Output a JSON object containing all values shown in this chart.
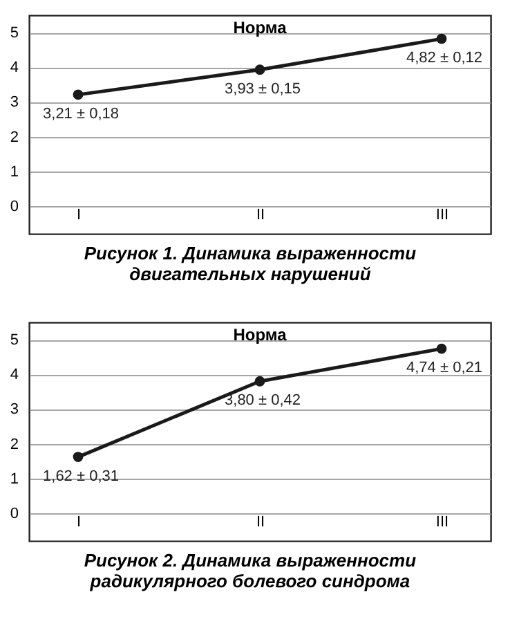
{
  "chart_data": [
    {
      "type": "line",
      "title": "Норма",
      "categories": [
        "I",
        "II",
        "III"
      ],
      "series": [
        {
          "color": "#1a1a1a",
          "values": [
            3.21,
            3.93,
            4.82
          ],
          "value_labels": [
            "3,21 ± 0,18",
            "3,93 ± 0,15",
            "4,82 ± 0,12"
          ]
        }
      ],
      "ylim": [
        -0.8,
        5.5
      ],
      "yticks": [
        0,
        1,
        2,
        3,
        4,
        5
      ],
      "grid": "y",
      "marker": "circle",
      "line_style": "solid",
      "annotations": [
        "Рисунок 1. Динамика выраженности\nдвигательных нарушений"
      ]
    },
    {
      "type": "line",
      "title": "Норма",
      "categories": [
        "I",
        "II",
        "III"
      ],
      "series": [
        {
          "color": "#1a1a1a",
          "values": [
            1.62,
            3.8,
            4.74
          ],
          "value_labels": [
            "1,62 ± 0,31",
            "3,80 ± 0,42",
            "4,74 ± 0,21"
          ]
        }
      ],
      "ylim": [
        -0.8,
        5.5
      ],
      "yticks": [
        0,
        1,
        2,
        3,
        4,
        5
      ],
      "grid": "y",
      "marker": "circle",
      "line_style": "solid",
      "annotations": [
        "Рисунок 2. Динамика выраженности\nрадикулярного болевого синдрома"
      ]
    }
  ]
}
